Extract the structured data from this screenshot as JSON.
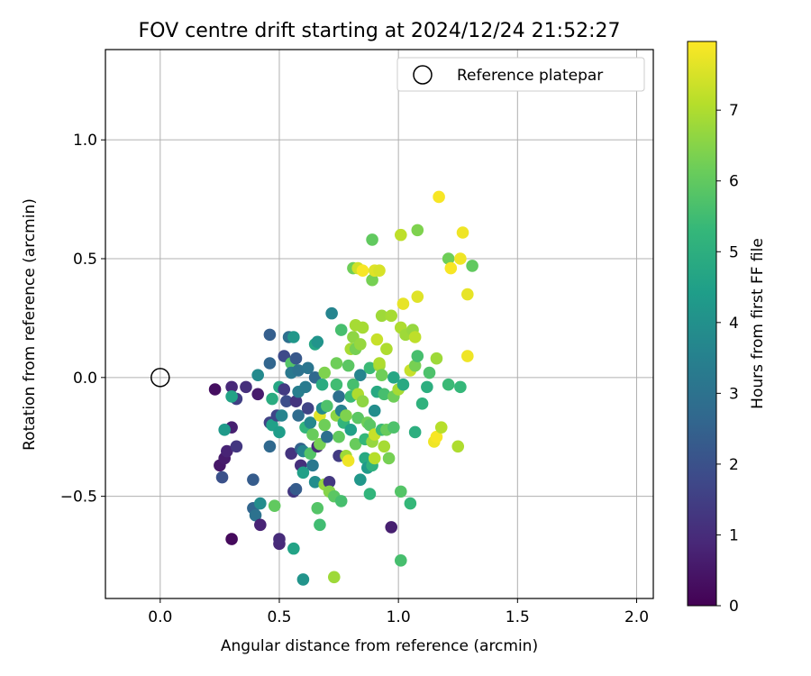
{
  "chart_data": {
    "type": "scatter",
    "title": "FOV centre drift starting at 2024/12/24 21:52:27",
    "xlabel": "Angular distance from reference (arcmin)",
    "ylabel": "Rotation from reference (arcmin)",
    "xlim": [
      -0.23,
      2.07
    ],
    "ylim": [
      -0.93,
      1.38
    ],
    "xticks": [
      0.0,
      0.5,
      1.0,
      1.5,
      2.0
    ],
    "xtick_labels": [
      "0.0",
      "0.5",
      "1.0",
      "1.5",
      "2.0"
    ],
    "yticks": [
      -0.5,
      0.0,
      0.5,
      1.0
    ],
    "ytick_labels": [
      "−0.5",
      "0.0",
      "0.5",
      "1.0"
    ],
    "grid": true,
    "legend": {
      "placement": "top-right",
      "label": "Reference platepar"
    },
    "reference_point": {
      "x": 0.0,
      "y": 0.0
    },
    "colorbar": {
      "label": "Hours from first FF file",
      "colormap": "viridis",
      "range": [
        0,
        7.97
      ],
      "ticks": [
        0,
        1,
        2,
        3,
        4,
        5,
        6,
        7
      ],
      "tick_labels": [
        "0",
        "1",
        "2",
        "3",
        "4",
        "5",
        "6",
        "7"
      ]
    },
    "colormap_stops": [
      "#440154",
      "#482878",
      "#3e4989",
      "#31688e",
      "#26828e",
      "#1f9e89",
      "#35b779",
      "#6ece58",
      "#b5de2b",
      "#fde725"
    ],
    "points": [
      {
        "x": 0.23,
        "y": -0.05,
        "t": 0.3
      },
      {
        "x": 0.25,
        "y": -0.37,
        "t": 0.5
      },
      {
        "x": 0.27,
        "y": -0.34,
        "t": 0.6
      },
      {
        "x": 0.28,
        "y": -0.31,
        "t": 0.8
      },
      {
        "x": 0.3,
        "y": -0.68,
        "t": 0.2
      },
      {
        "x": 0.3,
        "y": -0.21,
        "t": 0.7
      },
      {
        "x": 0.3,
        "y": -0.04,
        "t": 0.9
      },
      {
        "x": 0.32,
        "y": -0.29,
        "t": 1.3
      },
      {
        "x": 0.32,
        "y": -0.09,
        "t": 1.5
      },
      {
        "x": 0.26,
        "y": -0.42,
        "t": 2.0
      },
      {
        "x": 0.27,
        "y": -0.22,
        "t": 4.3
      },
      {
        "x": 0.3,
        "y": -0.08,
        "t": 4.6
      },
      {
        "x": 0.36,
        "y": -0.04,
        "t": 1.1
      },
      {
        "x": 0.39,
        "y": -0.43,
        "t": 2.3
      },
      {
        "x": 0.39,
        "y": -0.55,
        "t": 2.6
      },
      {
        "x": 0.4,
        "y": -0.58,
        "t": 3.0
      },
      {
        "x": 0.41,
        "y": -0.07,
        "t": 0.6
      },
      {
        "x": 0.41,
        "y": 0.01,
        "t": 3.8
      },
      {
        "x": 0.42,
        "y": -0.53,
        "t": 3.9
      },
      {
        "x": 0.42,
        "y": -0.62,
        "t": 0.8
      },
      {
        "x": 0.46,
        "y": 0.18,
        "t": 2.4
      },
      {
        "x": 0.46,
        "y": 0.06,
        "t": 2.6
      },
      {
        "x": 0.46,
        "y": -0.19,
        "t": 1.6
      },
      {
        "x": 0.46,
        "y": -0.29,
        "t": 2.7
      },
      {
        "x": 0.47,
        "y": -0.09,
        "t": 4.9
      },
      {
        "x": 0.47,
        "y": -0.2,
        "t": 4.5
      },
      {
        "x": 0.48,
        "y": -0.54,
        "t": 6.0
      },
      {
        "x": 0.49,
        "y": -0.16,
        "t": 1.7
      },
      {
        "x": 0.5,
        "y": -0.23,
        "t": 4.4
      },
      {
        "x": 0.5,
        "y": -0.7,
        "t": 0.9
      },
      {
        "x": 0.5,
        "y": -0.68,
        "t": 1.0
      },
      {
        "x": 0.51,
        "y": -0.16,
        "t": 3.6
      },
      {
        "x": 0.5,
        "y": -0.04,
        "t": 4.7
      },
      {
        "x": 0.52,
        "y": 0.09,
        "t": 1.8
      },
      {
        "x": 0.52,
        "y": -0.05,
        "t": 1.4
      },
      {
        "x": 0.53,
        "y": -0.1,
        "t": 1.9
      },
      {
        "x": 0.54,
        "y": 0.17,
        "t": 2.9
      },
      {
        "x": 0.55,
        "y": 0.06,
        "t": 5.8
      },
      {
        "x": 0.55,
        "y": 0.02,
        "t": 3.2
      },
      {
        "x": 0.55,
        "y": -0.32,
        "t": 1.2
      },
      {
        "x": 0.56,
        "y": -0.48,
        "t": 1.3
      },
      {
        "x": 0.56,
        "y": -0.72,
        "t": 4.6
      },
      {
        "x": 0.56,
        "y": 0.17,
        "t": 4.2
      },
      {
        "x": 0.57,
        "y": 0.08,
        "t": 2.2
      },
      {
        "x": 0.57,
        "y": -0.1,
        "t": 1.2
      },
      {
        "x": 0.57,
        "y": -0.47,
        "t": 2.3
      },
      {
        "x": 0.58,
        "y": -0.06,
        "t": 3.4
      },
      {
        "x": 0.58,
        "y": -0.16,
        "t": 2.8
      },
      {
        "x": 0.58,
        "y": 0.03,
        "t": 3.0
      },
      {
        "x": 0.59,
        "y": -0.3,
        "t": 2.5
      },
      {
        "x": 0.59,
        "y": -0.37,
        "t": 1.1
      },
      {
        "x": 0.6,
        "y": -0.85,
        "t": 4.1
      },
      {
        "x": 0.6,
        "y": -0.31,
        "t": 3.6
      },
      {
        "x": 0.6,
        "y": -0.4,
        "t": 4.5
      },
      {
        "x": 0.61,
        "y": -0.04,
        "t": 3.3
      },
      {
        "x": 0.61,
        "y": -0.21,
        "t": 5.2
      },
      {
        "x": 0.62,
        "y": -0.13,
        "t": 1.6
      },
      {
        "x": 0.62,
        "y": 0.04,
        "t": 3.1
      },
      {
        "x": 0.63,
        "y": -0.19,
        "t": 3.7
      },
      {
        "x": 0.63,
        "y": -0.32,
        "t": 5.8
      },
      {
        "x": 0.64,
        "y": -0.37,
        "t": 3.2
      },
      {
        "x": 0.64,
        "y": -0.24,
        "t": 6.1
      },
      {
        "x": 0.65,
        "y": 0.14,
        "t": 4.7
      },
      {
        "x": 0.65,
        "y": 0.0,
        "t": 2.7
      },
      {
        "x": 0.65,
        "y": -0.44,
        "t": 3.9
      },
      {
        "x": 0.66,
        "y": 0.15,
        "t": 4.1
      },
      {
        "x": 0.66,
        "y": -0.29,
        "t": 1.0
      },
      {
        "x": 0.66,
        "y": -0.55,
        "t": 5.8
      },
      {
        "x": 0.67,
        "y": -0.62,
        "t": 5.5
      },
      {
        "x": 0.67,
        "y": -0.28,
        "t": 6.3
      },
      {
        "x": 0.67,
        "y": -0.16,
        "t": 7.6
      },
      {
        "x": 0.68,
        "y": -0.03,
        "t": 4.9
      },
      {
        "x": 0.68,
        "y": -0.13,
        "t": 3.8
      },
      {
        "x": 0.69,
        "y": 0.02,
        "t": 6.4
      },
      {
        "x": 0.69,
        "y": -0.2,
        "t": 6.2
      },
      {
        "x": 0.69,
        "y": -0.45,
        "t": 6.7
      },
      {
        "x": 0.7,
        "y": -0.12,
        "t": 5.7
      },
      {
        "x": 0.7,
        "y": -0.25,
        "t": 2.9
      },
      {
        "x": 0.71,
        "y": -0.44,
        "t": 1.3
      },
      {
        "x": 0.71,
        "y": -0.48,
        "t": 6.5
      },
      {
        "x": 0.72,
        "y": 0.27,
        "t": 3.6
      },
      {
        "x": 0.73,
        "y": -0.5,
        "t": 5.9
      },
      {
        "x": 0.73,
        "y": -0.84,
        "t": 6.8
      },
      {
        "x": 0.74,
        "y": 0.06,
        "t": 6.2
      },
      {
        "x": 0.74,
        "y": -0.03,
        "t": 5.5
      },
      {
        "x": 0.74,
        "y": -0.16,
        "t": 6.6
      },
      {
        "x": 0.75,
        "y": -0.33,
        "t": 1.4
      },
      {
        "x": 0.75,
        "y": -0.08,
        "t": 2.9
      },
      {
        "x": 0.75,
        "y": -0.25,
        "t": 6.0
      },
      {
        "x": 0.76,
        "y": 0.2,
        "t": 5.6
      },
      {
        "x": 0.76,
        "y": -0.14,
        "t": 3.5
      },
      {
        "x": 0.76,
        "y": -0.52,
        "t": 5.6
      },
      {
        "x": 0.77,
        "y": -0.19,
        "t": 5.2
      },
      {
        "x": 0.78,
        "y": -0.33,
        "t": 6.8
      },
      {
        "x": 0.78,
        "y": -0.16,
        "t": 6.4
      },
      {
        "x": 0.79,
        "y": 0.05,
        "t": 5.9
      },
      {
        "x": 0.79,
        "y": -0.35,
        "t": 7.8
      },
      {
        "x": 0.8,
        "y": 0.12,
        "t": 6.9
      },
      {
        "x": 0.8,
        "y": -0.08,
        "t": 5.4
      },
      {
        "x": 0.8,
        "y": -0.22,
        "t": 4.5
      },
      {
        "x": 0.81,
        "y": 0.46,
        "t": 6.2
      },
      {
        "x": 0.81,
        "y": 0.17,
        "t": 6.6
      },
      {
        "x": 0.81,
        "y": -0.03,
        "t": 5.6
      },
      {
        "x": 0.82,
        "y": -0.28,
        "t": 6.1
      },
      {
        "x": 0.82,
        "y": 0.22,
        "t": 6.9
      },
      {
        "x": 0.82,
        "y": 0.12,
        "t": 6.3
      },
      {
        "x": 0.83,
        "y": 0.46,
        "t": 7.4
      },
      {
        "x": 0.83,
        "y": -0.17,
        "t": 5.9
      },
      {
        "x": 0.83,
        "y": -0.07,
        "t": 7.0
      },
      {
        "x": 0.84,
        "y": 0.14,
        "t": 6.7
      },
      {
        "x": 0.84,
        "y": 0.01,
        "t": 3.6
      },
      {
        "x": 0.84,
        "y": -0.43,
        "t": 4.2
      },
      {
        "x": 0.85,
        "y": 0.45,
        "t": 7.9
      },
      {
        "x": 0.85,
        "y": 0.21,
        "t": 6.9
      },
      {
        "x": 0.85,
        "y": -0.1,
        "t": 6.6
      },
      {
        "x": 0.86,
        "y": -0.26,
        "t": 5.3
      },
      {
        "x": 0.86,
        "y": -0.34,
        "t": 4.8
      },
      {
        "x": 0.87,
        "y": -0.19,
        "t": 6.2
      },
      {
        "x": 0.87,
        "y": -0.38,
        "t": 4.3
      },
      {
        "x": 0.88,
        "y": 0.04,
        "t": 5.4
      },
      {
        "x": 0.88,
        "y": -0.49,
        "t": 5.2
      },
      {
        "x": 0.88,
        "y": -0.2,
        "t": 5.9
      },
      {
        "x": 0.89,
        "y": 0.58,
        "t": 6.0
      },
      {
        "x": 0.89,
        "y": 0.41,
        "t": 6.3
      },
      {
        "x": 0.89,
        "y": -0.37,
        "t": 5.1
      },
      {
        "x": 0.89,
        "y": -0.27,
        "t": 6.7
      },
      {
        "x": 0.9,
        "y": 0.45,
        "t": 7.6
      },
      {
        "x": 0.9,
        "y": -0.14,
        "t": 3.9
      },
      {
        "x": 0.9,
        "y": -0.34,
        "t": 7.1
      },
      {
        "x": 0.9,
        "y": -0.24,
        "t": 7.3
      },
      {
        "x": 0.91,
        "y": 0.16,
        "t": 7.3
      },
      {
        "x": 0.91,
        "y": -0.06,
        "t": 4.8
      },
      {
        "x": 0.92,
        "y": 0.45,
        "t": 7.5
      },
      {
        "x": 0.92,
        "y": 0.05,
        "t": 6.8
      },
      {
        "x": 0.92,
        "y": 0.06,
        "t": 7.0
      },
      {
        "x": 0.93,
        "y": 0.26,
        "t": 6.8
      },
      {
        "x": 0.93,
        "y": -0.22,
        "t": 5.4
      },
      {
        "x": 0.93,
        "y": 0.01,
        "t": 6.2
      },
      {
        "x": 0.94,
        "y": -0.29,
        "t": 6.9
      },
      {
        "x": 0.94,
        "y": -0.07,
        "t": 5.6
      },
      {
        "x": 0.95,
        "y": 0.12,
        "t": 7.0
      },
      {
        "x": 0.95,
        "y": -0.22,
        "t": 6.1
      },
      {
        "x": 0.96,
        "y": -0.34,
        "t": 6.3
      },
      {
        "x": 0.97,
        "y": 0.26,
        "t": 6.9
      },
      {
        "x": 0.97,
        "y": -0.63,
        "t": 0.7
      },
      {
        "x": 0.98,
        "y": 0.0,
        "t": 4.7
      },
      {
        "x": 0.98,
        "y": -0.08,
        "t": 6.2
      },
      {
        "x": 0.98,
        "y": -0.21,
        "t": 5.7
      },
      {
        "x": 1.0,
        "y": -0.05,
        "t": 6.9
      },
      {
        "x": 1.01,
        "y": 0.21,
        "t": 7.0
      },
      {
        "x": 1.01,
        "y": 0.6,
        "t": 7.2
      },
      {
        "x": 1.01,
        "y": -0.48,
        "t": 5.8
      },
      {
        "x": 1.01,
        "y": -0.77,
        "t": 5.6
      },
      {
        "x": 1.02,
        "y": -0.03,
        "t": 4.8
      },
      {
        "x": 1.02,
        "y": 0.31,
        "t": 7.7
      },
      {
        "x": 1.03,
        "y": 0.18,
        "t": 6.8
      },
      {
        "x": 1.05,
        "y": 0.03,
        "t": 7.3
      },
      {
        "x": 1.05,
        "y": -0.53,
        "t": 5.3
      },
      {
        "x": 1.06,
        "y": 0.2,
        "t": 6.7
      },
      {
        "x": 1.07,
        "y": 0.05,
        "t": 6.3
      },
      {
        "x": 1.07,
        "y": 0.17,
        "t": 7.2
      },
      {
        "x": 1.07,
        "y": -0.23,
        "t": 5.0
      },
      {
        "x": 1.08,
        "y": 0.34,
        "t": 7.6
      },
      {
        "x": 1.08,
        "y": 0.09,
        "t": 5.6
      },
      {
        "x": 1.08,
        "y": 0.62,
        "t": 6.4
      },
      {
        "x": 1.1,
        "y": -0.11,
        "t": 5.1
      },
      {
        "x": 1.12,
        "y": -0.04,
        "t": 5.0
      },
      {
        "x": 1.13,
        "y": 0.02,
        "t": 5.7
      },
      {
        "x": 1.15,
        "y": -0.27,
        "t": 7.8
      },
      {
        "x": 1.16,
        "y": -0.25,
        "t": 7.9
      },
      {
        "x": 1.16,
        "y": 0.08,
        "t": 6.8
      },
      {
        "x": 1.17,
        "y": 0.76,
        "t": 7.9
      },
      {
        "x": 1.18,
        "y": -0.21,
        "t": 7.1
      },
      {
        "x": 1.21,
        "y": 0.5,
        "t": 6.2
      },
      {
        "x": 1.21,
        "y": -0.03,
        "t": 5.4
      },
      {
        "x": 1.22,
        "y": 0.46,
        "t": 7.9
      },
      {
        "x": 1.26,
        "y": -0.04,
        "t": 5.3
      },
      {
        "x": 1.25,
        "y": -0.29,
        "t": 7.0
      },
      {
        "x": 1.26,
        "y": 0.5,
        "t": 7.8
      },
      {
        "x": 1.27,
        "y": 0.61,
        "t": 7.8
      },
      {
        "x": 1.29,
        "y": 0.09,
        "t": 7.8
      },
      {
        "x": 1.29,
        "y": 0.35,
        "t": 7.7
      },
      {
        "x": 1.31,
        "y": 0.47,
        "t": 6.0
      }
    ]
  }
}
